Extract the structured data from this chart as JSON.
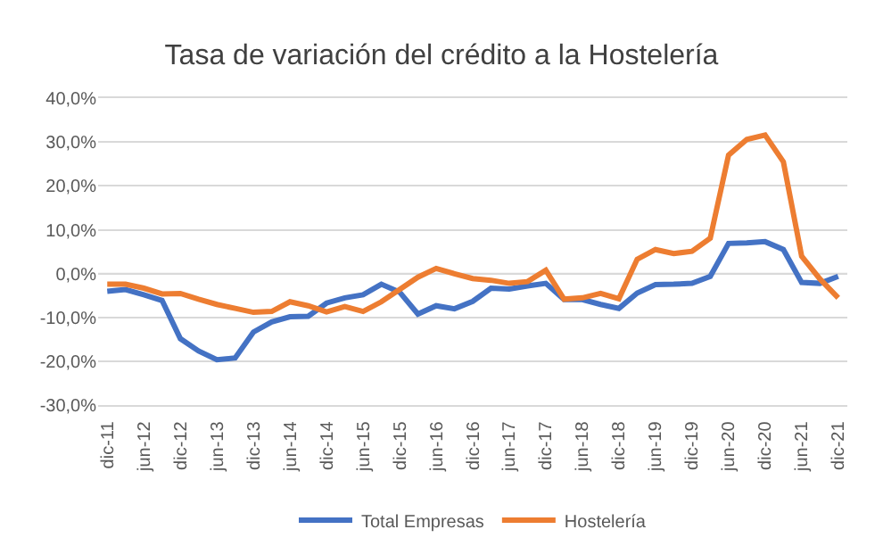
{
  "chart_data": {
    "type": "line",
    "title": "Tasa de variación del crédito a la Hostelería",
    "categories": [
      "dic-11",
      null,
      "jun-12",
      null,
      "dic-12",
      null,
      "jun-13",
      null,
      "dic-13",
      null,
      "jun-14",
      null,
      "dic-14",
      null,
      "jun-15",
      null,
      "dic-15",
      null,
      "jun-16",
      null,
      "dic-16",
      null,
      "jun-17",
      null,
      "dic-17",
      null,
      "jun-18",
      null,
      "dic-18",
      null,
      "jun-19",
      null,
      "dic-19",
      null,
      "jun-20",
      null,
      "dic-20",
      null,
      "jun-21",
      null,
      "dic-21"
    ],
    "series": [
      {
        "name": "Total Empresas",
        "color": "#4472c4",
        "values": [
          -4.0,
          -3.6,
          -4.8,
          -6.1,
          -14.8,
          -17.6,
          -19.6,
          -19.2,
          -13.3,
          -11.0,
          -9.8,
          -9.7,
          -6.7,
          -5.5,
          -4.8,
          -2.4,
          -4.2,
          -9.2,
          -7.3,
          -8.0,
          -6.3,
          -3.3,
          -3.5,
          -2.8,
          -2.2,
          -5.9,
          -5.9,
          -7.0,
          -7.9,
          -4.4,
          -2.5,
          -2.4,
          -2.2,
          -0.6,
          6.9,
          7.0,
          7.3,
          5.5,
          -2.0,
          -2.2,
          -0.6
        ]
      },
      {
        "name": "Hostelería",
        "color": "#ed7d31",
        "values": [
          -2.4,
          -2.4,
          -3.3,
          -4.6,
          -4.5,
          -5.8,
          -7.0,
          -7.9,
          -8.8,
          -8.6,
          -6.4,
          -7.3,
          -8.7,
          -7.5,
          -8.6,
          -6.4,
          -3.6,
          -0.8,
          1.2,
          0.0,
          -1.1,
          -1.5,
          -2.2,
          -1.8,
          0.8,
          -5.8,
          -5.5,
          -4.5,
          -5.7,
          3.3,
          5.5,
          4.6,
          5.1,
          8.1,
          27.0,
          30.6,
          31.6,
          25.5,
          4.0,
          -1.2,
          -5.5
        ]
      }
    ],
    "ylim": [
      -30,
      40
    ],
    "yticks": [
      {
        "value": -30,
        "label": "-30,0%"
      },
      {
        "value": -20,
        "label": "-20,0%"
      },
      {
        "value": -10,
        "label": "-10,0%"
      },
      {
        "value": 0,
        "label": "0,0%"
      },
      {
        "value": 10,
        "label": "10,0%"
      },
      {
        "value": 20,
        "label": "20,0%"
      },
      {
        "value": 30,
        "label": "30,0%"
      },
      {
        "value": 40,
        "label": "40,0%"
      }
    ],
    "grid": "y",
    "legend": "bottom",
    "marker": "none",
    "line_style": "solid"
  }
}
